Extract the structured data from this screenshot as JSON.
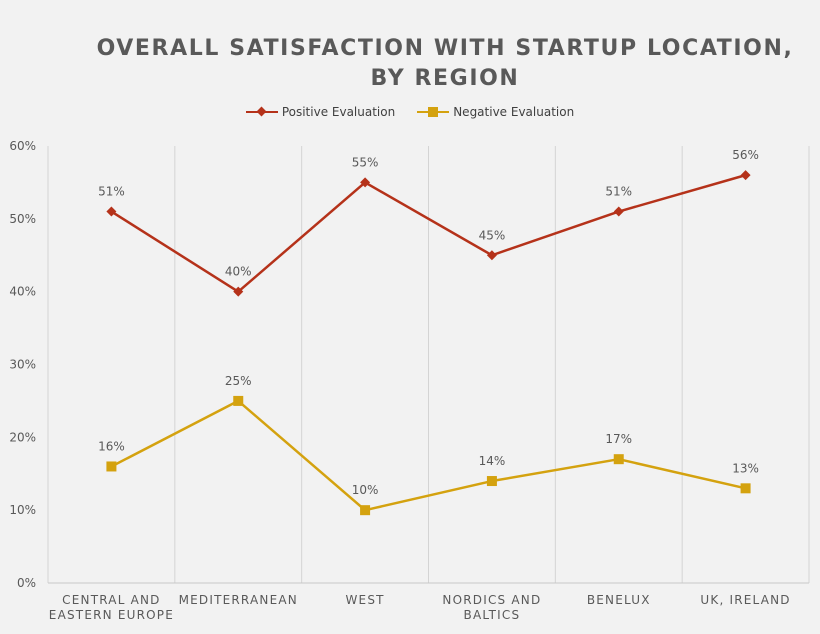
{
  "chart_data": {
    "type": "line",
    "title_lines": [
      "OVERALL SATISFACTION WITH STARTUP LOCATION,",
      "BY REGION"
    ],
    "categories": [
      [
        "CENTRAL AND",
        "EASTERN EUROPE"
      ],
      [
        "MEDITERRANEAN"
      ],
      [
        "WEST"
      ],
      [
        "NORDICS AND",
        "BALTICS"
      ],
      [
        "BENELUX"
      ],
      [
        "UK, IRELAND"
      ]
    ],
    "series": [
      {
        "name": "Positive Evaluation",
        "values": [
          51,
          40,
          55,
          45,
          51,
          56
        ],
        "color": "#b5321a",
        "marker": "diamond"
      },
      {
        "name": "Negative Evaluation",
        "values": [
          16,
          25,
          10,
          14,
          17,
          13
        ],
        "color": "#d4a20f",
        "marker": "square"
      }
    ],
    "ylim": [
      0,
      60
    ],
    "yticks": [
      0,
      10,
      20,
      30,
      40,
      50,
      60
    ],
    "ytick_suffix": "%",
    "data_label_suffix": "%",
    "grid": "vertical",
    "legend": "top"
  }
}
